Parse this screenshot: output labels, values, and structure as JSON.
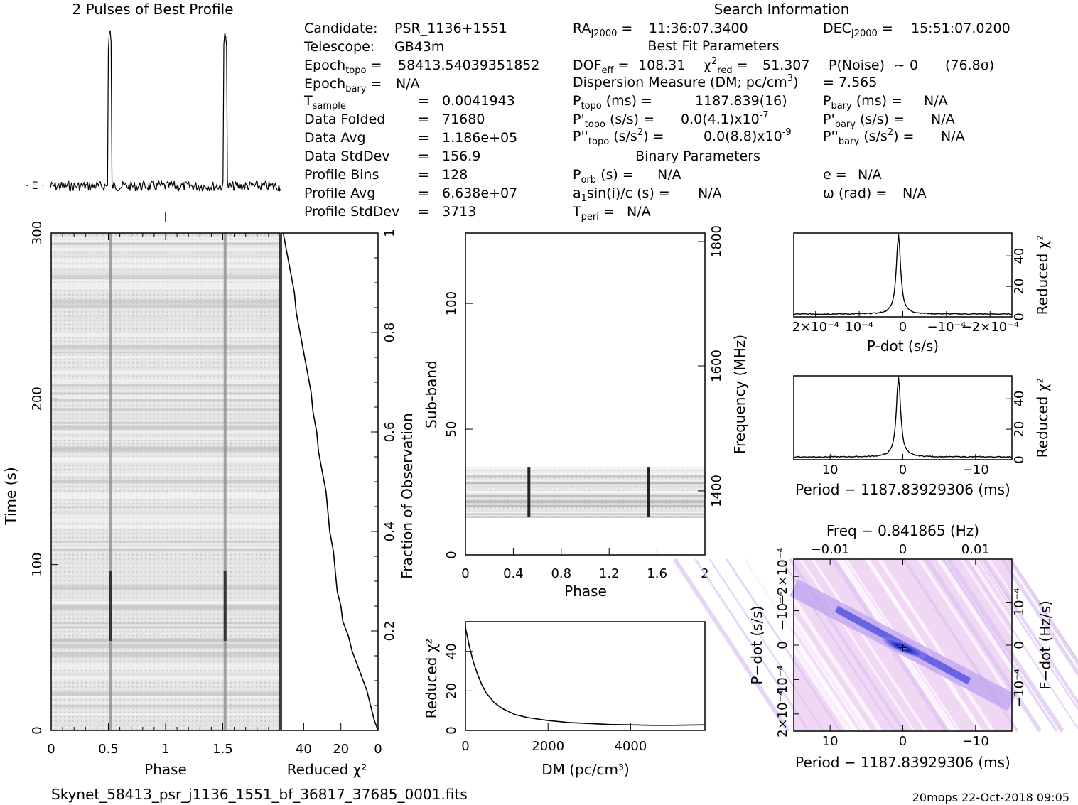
{
  "profile": {
    "title": "2 Pulses of Best Profile"
  },
  "search_info": {
    "title": "Search Information",
    "candidate": "PSR_1136+1551",
    "telescope": "GB43m",
    "epoch_topo": "58413.54039351852",
    "epoch_bary": "N/A",
    "t_sample": "0.0041943",
    "data_folded": "71680",
    "data_avg": "1.186e+05",
    "data_stddev": "156.9",
    "profile_bins": "128",
    "profile_avg": "6.638e+07",
    "profile_stddev": "3713",
    "ra": "11:36:07.3400",
    "dec": "15:51:07.0200",
    "best_fit_title": "Best Fit Parameters",
    "dof_eff": "108.31",
    "chi2_red": "51.307",
    "p_noise": "~ 0",
    "sigma": "(76.8σ)",
    "dm_label": "Dispersion Measure (DM; pc/cm",
    "dm_value": "= 7.565",
    "p_topo": "1187.839(16)",
    "pd_topo": "0.0(4.1)x10",
    "pd_topo_exp": "-7",
    "pdd_topo": "0.0(8.8)x10",
    "pdd_topo_exp": "-9",
    "p_bary": "N/A",
    "pd_bary": "N/A",
    "pdd_bary": "N/A",
    "binary_title": "Binary Parameters",
    "p_orb": "N/A",
    "a1sini": "N/A",
    "t_peri": "N/A",
    "e": "N/A",
    "omega": "N/A"
  },
  "footer": {
    "filename": "Skynet_58413_psr_j1136_1551_bf_36817_37685_0001.fits",
    "stamp": "20mops 22-Oct-2018 09:05"
  },
  "chart_data": [
    {
      "id": "time_phase",
      "type": "heatmap",
      "xlabel": "Phase",
      "ylabel": "Time (s)",
      "xlim": [
        0,
        2
      ],
      "ylim": [
        0,
        300
      ],
      "xticks": [
        "0",
        "0.5",
        "1",
        "1.5"
      ],
      "yticks": [
        "0",
        "100",
        "200",
        "300"
      ],
      "pulse_phases": [
        0.52,
        1.52
      ]
    },
    {
      "id": "chi2_vs_time",
      "type": "line",
      "xlabel": "Reduced χ²",
      "ylabel": "Fraction of Observation",
      "xlim": [
        52,
        0
      ],
      "ylim": [
        0,
        1
      ],
      "xticks": [
        "40",
        "20",
        "0"
      ],
      "yticks": [
        "0.2",
        "0.4",
        "0.6",
        "0.8",
        "1"
      ],
      "points": [
        [
          0,
          0
        ],
        [
          2,
          0.02
        ],
        [
          4,
          0.05
        ],
        [
          6,
          0.08
        ],
        [
          8,
          0.1
        ],
        [
          11,
          0.13
        ],
        [
          14,
          0.16
        ],
        [
          16,
          0.19
        ],
        [
          17,
          0.2
        ],
        [
          19,
          0.22
        ],
        [
          20,
          0.25
        ],
        [
          22,
          0.28
        ],
        [
          23,
          0.32
        ],
        [
          24,
          0.36
        ],
        [
          26,
          0.4
        ],
        [
          27,
          0.44
        ],
        [
          28,
          0.48
        ],
        [
          30,
          0.52
        ],
        [
          32,
          0.56
        ],
        [
          33,
          0.6
        ],
        [
          35,
          0.64
        ],
        [
          36,
          0.68
        ],
        [
          38,
          0.72
        ],
        [
          40,
          0.76
        ],
        [
          42,
          0.8
        ],
        [
          44,
          0.84
        ],
        [
          45,
          0.88
        ],
        [
          47,
          0.92
        ],
        [
          49,
          0.96
        ],
        [
          51,
          1.0
        ]
      ]
    },
    {
      "id": "subband_phase",
      "type": "heatmap",
      "xlabel": "Phase",
      "ylabel": "Sub-band",
      "y2label": "Frequency (MHz)",
      "xlim": [
        0,
        2
      ],
      "ylim": [
        0,
        128
      ],
      "xticks": [
        "0",
        "0.4",
        "0.8",
        "1.2",
        "1.6",
        "2"
      ],
      "yticks": [
        "0",
        "50",
        "100"
      ],
      "y2ticks": [
        "1400",
        "1600",
        "1800"
      ],
      "band": [
        15,
        35
      ],
      "pulse_phases": [
        0.53,
        1.53
      ]
    },
    {
      "id": "dm_curve",
      "type": "line",
      "xlabel": "DM (pc/cm³)",
      "ylabel": "Reduced χ²",
      "xlim": [
        0,
        5800
      ],
      "ylim": [
        0,
        55
      ],
      "xticks": [
        "0",
        "2000",
        "4000"
      ],
      "yticks": [
        "0",
        "20",
        "40"
      ],
      "points": [
        [
          0,
          52
        ],
        [
          100,
          42
        ],
        [
          200,
          34
        ],
        [
          300,
          28
        ],
        [
          400,
          23
        ],
        [
          500,
          19
        ],
        [
          700,
          14
        ],
        [
          900,
          11
        ],
        [
          1200,
          8
        ],
        [
          1500,
          6.5
        ],
        [
          2000,
          5
        ],
        [
          2500,
          4
        ],
        [
          3000,
          3.5
        ],
        [
          3500,
          3
        ],
        [
          4000,
          2.8
        ],
        [
          4500,
          2.6
        ],
        [
          5000,
          2.6
        ],
        [
          5800,
          2.8
        ]
      ]
    },
    {
      "id": "pdot_curve",
      "type": "line",
      "xlabel": "P-dot (s/s)",
      "ylabel": "Reduced χ²",
      "xlim": [
        0.00025,
        -0.00025
      ],
      "ylim": [
        0,
        55
      ],
      "xticks": [
        "2×10⁻⁴",
        "10⁻⁴",
        "0",
        "−10⁻⁴",
        "−2×10⁻⁴"
      ],
      "yticks": [
        "0",
        "20",
        "40"
      ],
      "peak": 52
    },
    {
      "id": "period_curve",
      "type": "line",
      "xlabel": "Period − 1187.83929306 (ms)",
      "ylabel": "Reduced χ²",
      "xlim": [
        19,
        -19
      ],
      "ylim": [
        0,
        55
      ],
      "xticks": [
        "10",
        "0",
        "−10"
      ],
      "yticks": [
        "0",
        "20",
        "40"
      ],
      "peak": 52
    },
    {
      "id": "period_pdot",
      "type": "heatmap",
      "title": "Freq − 0.841865 (Hz)",
      "xlabel": "Period − 1187.83929306 (ms)",
      "ylabel": "P−dot (s/s)",
      "y2label": "F−dot (Hz/s)",
      "xticks": [
        "10",
        "0",
        "−10"
      ],
      "x2ticks": [
        "−0.01",
        "0",
        "0.01"
      ],
      "yticks": [
        "2×10⁻⁴",
        "10⁻⁴",
        "0",
        "−10⁻⁴",
        "−2×10⁻⁴"
      ],
      "y2ticks": [
        "−10⁻⁴",
        "0",
        "10⁻⁴"
      ],
      "colors": [
        "#ffffff",
        "#f0d8f5",
        "#b8a0f0",
        "#5050e0",
        "#1818c0",
        "#30e0ff"
      ]
    }
  ]
}
